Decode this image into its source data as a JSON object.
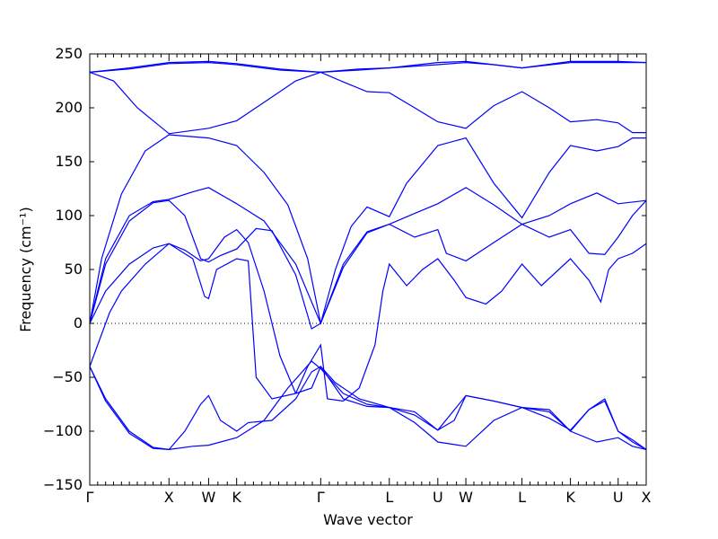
{
  "chart_data": {
    "type": "line",
    "xlabel": "Wave vector",
    "ylabel": "Frequency (cm⁻¹)",
    "ylim": [
      -150,
      250
    ],
    "yticks": [
      -150,
      -100,
      -50,
      0,
      50,
      100,
      150,
      200,
      250
    ],
    "ytick_labels": [
      "−150",
      "−100",
      "−50",
      "0",
      "50",
      "100",
      "150",
      "200",
      "250"
    ],
    "zero_line": "dotted",
    "grid": false,
    "legend": "none",
    "line_color": "#0000ff",
    "x_points": [
      {
        "label": "Γ",
        "pos": 0
      },
      {
        "label": "X",
        "pos": 1.0
      },
      {
        "label": "W",
        "pos": 1.5
      },
      {
        "label": "K",
        "pos": 1.854
      },
      {
        "label": "Γ",
        "pos": 2.915
      },
      {
        "label": "L",
        "pos": 3.781
      },
      {
        "label": "U",
        "pos": 4.393
      },
      {
        "label": "W",
        "pos": 4.747
      },
      {
        "label": "L",
        "pos": 5.455
      },
      {
        "label": "K",
        "pos": 6.067
      },
      {
        "label": "U",
        "pos": 6.669
      },
      {
        "label": "X",
        "pos": 7.023
      }
    ],
    "xlim": [
      0,
      7.023
    ],
    "series": [
      {
        "values": [
          [
            0,
            233
          ],
          [
            0.5,
            237
          ],
          [
            1.0,
            242
          ],
          [
            1.5,
            243
          ],
          [
            1.854,
            241
          ],
          [
            2.4,
            236
          ],
          [
            2.915,
            233
          ],
          [
            3.4,
            236
          ],
          [
            3.781,
            237
          ],
          [
            4.393,
            240
          ],
          [
            4.747,
            242
          ],
          [
            5.1,
            240
          ],
          [
            5.455,
            237
          ],
          [
            6.067,
            242
          ],
          [
            6.669,
            242
          ],
          [
            7.023,
            242
          ]
        ]
      },
      {
        "values": [
          [
            0,
            233
          ],
          [
            0.5,
            236
          ],
          [
            1.0,
            241
          ],
          [
            1.5,
            242
          ],
          [
            1.854,
            240
          ],
          [
            2.4,
            235
          ],
          [
            2.915,
            233
          ],
          [
            3.4,
            235
          ],
          [
            3.781,
            237
          ],
          [
            4.393,
            242
          ],
          [
            4.747,
            243
          ],
          [
            5.1,
            240
          ],
          [
            5.455,
            237
          ],
          [
            6.067,
            243
          ],
          [
            6.669,
            243
          ],
          [
            7.023,
            242
          ]
        ]
      },
      {
        "values": [
          [
            0,
            233
          ],
          [
            0.3,
            225
          ],
          [
            0.6,
            200
          ],
          [
            1.0,
            176
          ],
          [
            1.5,
            181
          ],
          [
            1.854,
            188
          ],
          [
            2.4,
            215
          ],
          [
            2.6,
            225
          ],
          [
            2.915,
            233
          ],
          [
            3.2,
            224
          ],
          [
            3.5,
            215
          ],
          [
            3.781,
            214
          ],
          [
            4.1,
            200
          ],
          [
            4.393,
            187
          ],
          [
            4.747,
            181
          ],
          [
            5.1,
            202
          ],
          [
            5.455,
            215
          ],
          [
            5.8,
            200
          ],
          [
            6.067,
            187
          ],
          [
            6.4,
            189
          ],
          [
            6.669,
            186
          ],
          [
            6.85,
            177
          ],
          [
            7.023,
            177
          ]
        ]
      },
      {
        "values": [
          [
            0,
            0
          ],
          [
            0.15,
            60
          ],
          [
            0.4,
            120
          ],
          [
            0.7,
            160
          ],
          [
            1.0,
            175
          ],
          [
            1.5,
            172
          ],
          [
            1.854,
            165
          ],
          [
            2.2,
            140
          ],
          [
            2.5,
            110
          ],
          [
            2.75,
            60
          ],
          [
            2.915,
            0
          ],
          [
            3.1,
            50
          ],
          [
            3.3,
            90
          ],
          [
            3.5,
            108
          ],
          [
            3.781,
            99
          ],
          [
            4.0,
            130
          ],
          [
            4.393,
            165
          ],
          [
            4.747,
            172
          ],
          [
            5.1,
            130
          ],
          [
            5.455,
            98
          ],
          [
            5.8,
            140
          ],
          [
            6.067,
            165
          ],
          [
            6.4,
            160
          ],
          [
            6.669,
            164
          ],
          [
            6.85,
            172
          ],
          [
            7.023,
            172
          ]
        ]
      },
      {
        "values": [
          [
            0,
            0
          ],
          [
            0.2,
            60
          ],
          [
            0.5,
            100
          ],
          [
            0.8,
            113
          ],
          [
            1.0,
            115
          ],
          [
            1.3,
            122
          ],
          [
            1.5,
            126
          ],
          [
            1.854,
            111
          ],
          [
            2.2,
            95
          ],
          [
            2.6,
            55
          ],
          [
            2.915,
            0
          ],
          [
            3.2,
            55
          ],
          [
            3.5,
            85
          ],
          [
            3.781,
            92
          ],
          [
            4.1,
            102
          ],
          [
            4.393,
            111
          ],
          [
            4.747,
            126
          ],
          [
            5.1,
            110
          ],
          [
            5.455,
            92
          ],
          [
            5.8,
            100
          ],
          [
            6.067,
            111
          ],
          [
            6.4,
            121
          ],
          [
            6.669,
            111
          ],
          [
            7.023,
            114
          ]
        ]
      },
      {
        "values": [
          [
            0,
            0
          ],
          [
            0.2,
            55
          ],
          [
            0.5,
            95
          ],
          [
            0.8,
            112
          ],
          [
            1.0,
            114
          ],
          [
            1.2,
            100
          ],
          [
            1.4,
            60
          ],
          [
            1.5,
            57
          ],
          [
            1.65,
            63
          ],
          [
            1.854,
            69
          ],
          [
            2.1,
            88
          ],
          [
            2.3,
            86
          ],
          [
            2.6,
            45
          ],
          [
            2.8,
            -5
          ],
          [
            2.915,
            0
          ],
          [
            3.2,
            52
          ],
          [
            3.5,
            84
          ],
          [
            3.781,
            92
          ],
          [
            4.1,
            80
          ],
          [
            4.393,
            87
          ],
          [
            4.5,
            65
          ],
          [
            4.747,
            58
          ],
          [
            5.1,
            75
          ],
          [
            5.455,
            92
          ],
          [
            5.8,
            80
          ],
          [
            6.067,
            87
          ],
          [
            6.3,
            65
          ],
          [
            6.5,
            64
          ],
          [
            6.669,
            80
          ],
          [
            6.85,
            100
          ],
          [
            7.023,
            114
          ]
        ]
      },
      {
        "values": [
          [
            0,
            0
          ],
          [
            0.2,
            30
          ],
          [
            0.5,
            55
          ],
          [
            0.8,
            70
          ],
          [
            1.0,
            74
          ],
          [
            1.2,
            68
          ],
          [
            1.4,
            58
          ],
          [
            1.5,
            60
          ],
          [
            1.7,
            80
          ],
          [
            1.854,
            87
          ],
          [
            2.0,
            75
          ],
          [
            2.2,
            30
          ],
          [
            2.4,
            -30
          ],
          [
            2.6,
            -65
          ],
          [
            2.8,
            -60
          ],
          [
            2.915,
            -40
          ],
          [
            3.1,
            -55
          ],
          [
            3.4,
            -70
          ],
          [
            3.781,
            -78
          ],
          [
            4.1,
            -82
          ],
          [
            4.393,
            -99
          ],
          [
            4.6,
            -90
          ],
          [
            4.747,
            -67
          ],
          [
            5.1,
            -72
          ],
          [
            5.455,
            -78
          ],
          [
            5.8,
            -88
          ],
          [
            6.067,
            -99
          ],
          [
            6.3,
            -80
          ],
          [
            6.5,
            -72
          ],
          [
            6.669,
            -100
          ],
          [
            6.85,
            -108
          ],
          [
            7.023,
            -117
          ]
        ]
      },
      {
        "values": [
          [
            0,
            -40
          ],
          [
            0.1,
            -20
          ],
          [
            0.2,
            0
          ],
          [
            0.25,
            10
          ],
          [
            0.4,
            30
          ],
          [
            0.7,
            55
          ],
          [
            1.0,
            74
          ],
          [
            1.3,
            60
          ],
          [
            1.45,
            25
          ],
          [
            1.5,
            23
          ],
          [
            1.6,
            50
          ],
          [
            1.854,
            60
          ],
          [
            2.0,
            58
          ],
          [
            2.1,
            -50
          ],
          [
            2.3,
            -70
          ],
          [
            2.6,
            -65
          ],
          [
            2.75,
            -40
          ],
          [
            2.915,
            -20
          ],
          [
            3.0,
            -70
          ],
          [
            3.2,
            -72
          ],
          [
            3.4,
            -60
          ],
          [
            3.6,
            -20
          ],
          [
            3.7,
            30
          ],
          [
            3.781,
            55
          ],
          [
            4.0,
            35
          ],
          [
            4.2,
            50
          ],
          [
            4.393,
            60
          ],
          [
            4.6,
            40
          ],
          [
            4.747,
            24
          ],
          [
            5.0,
            18
          ],
          [
            5.2,
            30
          ],
          [
            5.455,
            55
          ],
          [
            5.7,
            35
          ],
          [
            6.067,
            60
          ],
          [
            6.3,
            40
          ],
          [
            6.45,
            20
          ],
          [
            6.55,
            50
          ],
          [
            6.669,
            60
          ],
          [
            6.85,
            65
          ],
          [
            7.023,
            74
          ]
        ]
      },
      {
        "values": [
          [
            0,
            -40
          ],
          [
            0.2,
            -70
          ],
          [
            0.5,
            -100
          ],
          [
            0.8,
            -115
          ],
          [
            1.0,
            -117
          ],
          [
            1.3,
            -114
          ],
          [
            1.5,
            -113
          ],
          [
            1.854,
            -106
          ],
          [
            2.2,
            -90
          ],
          [
            2.5,
            -60
          ],
          [
            2.8,
            -35
          ],
          [
            2.915,
            -42
          ],
          [
            3.2,
            -65
          ],
          [
            3.5,
            -75
          ],
          [
            3.781,
            -78
          ],
          [
            4.1,
            -85
          ],
          [
            4.393,
            -99
          ],
          [
            4.747,
            -67
          ],
          [
            5.1,
            -72
          ],
          [
            5.455,
            -78
          ],
          [
            5.8,
            -82
          ],
          [
            6.067,
            -100
          ],
          [
            6.4,
            -110
          ],
          [
            6.669,
            -106
          ],
          [
            6.85,
            -114
          ],
          [
            7.023,
            -117
          ]
        ]
      },
      {
        "values": [
          [
            0,
            -40
          ],
          [
            0.2,
            -72
          ],
          [
            0.5,
            -102
          ],
          [
            0.8,
            -116
          ],
          [
            1.0,
            -117
          ],
          [
            1.2,
            -100
          ],
          [
            1.4,
            -75
          ],
          [
            1.5,
            -67
          ],
          [
            1.65,
            -90
          ],
          [
            1.854,
            -100
          ],
          [
            2.0,
            -92
          ],
          [
            2.3,
            -90
          ],
          [
            2.6,
            -70
          ],
          [
            2.8,
            -45
          ],
          [
            2.915,
            -40
          ],
          [
            3.2,
            -70
          ],
          [
            3.5,
            -77
          ],
          [
            3.781,
            -78
          ],
          [
            4.1,
            -92
          ],
          [
            4.393,
            -110
          ],
          [
            4.747,
            -114
          ],
          [
            5.1,
            -90
          ],
          [
            5.455,
            -78
          ],
          [
            5.8,
            -80
          ],
          [
            6.067,
            -100
          ],
          [
            6.3,
            -80
          ],
          [
            6.5,
            -70
          ],
          [
            6.669,
            -100
          ],
          [
            6.85,
            -110
          ],
          [
            7.023,
            -117
          ]
        ]
      }
    ]
  }
}
